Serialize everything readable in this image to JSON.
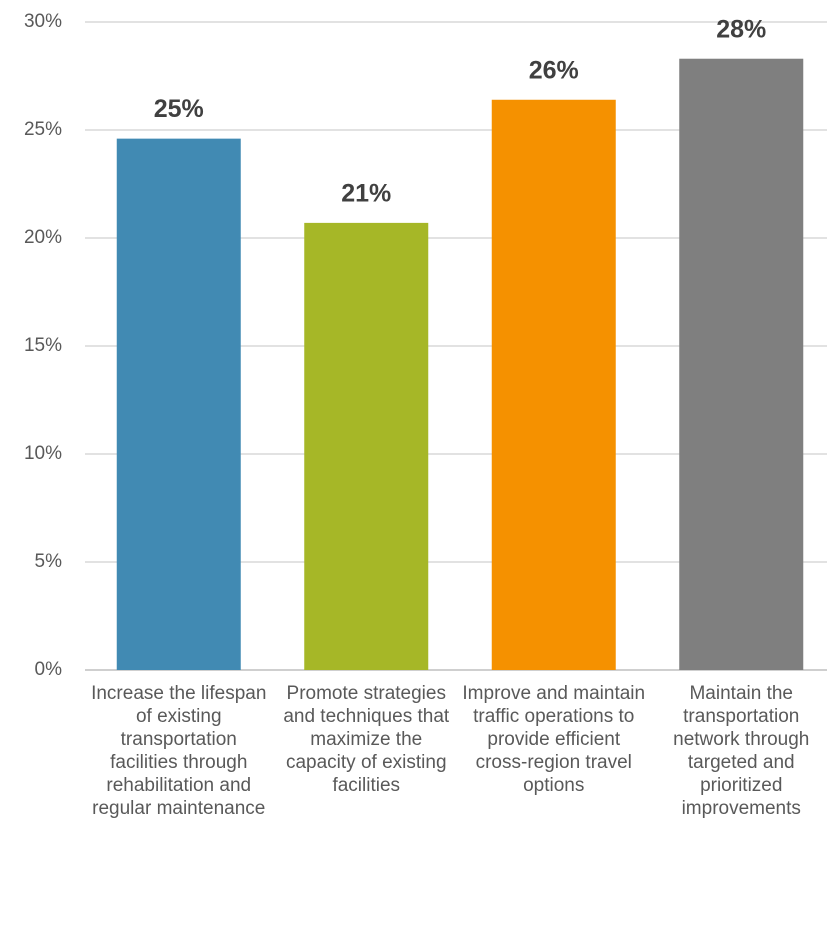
{
  "chart_data": {
    "type": "bar",
    "categories": [
      "Increase the lifespan of existing transportation facilities through rehabilitation and regular maintenance",
      "Promote strategies and techniques that maximize the capacity of existing facilities",
      "Improve and maintain traffic operations to provide efficient cross-region travel options",
      "Maintain the transportation network through targeted and prioritized improvements"
    ],
    "values": [
      24.6,
      20.7,
      26.4,
      28.3
    ],
    "value_labels": [
      "25%",
      "21%",
      "26%",
      "28%"
    ],
    "colors": [
      "#418ab3",
      "#a6b727",
      "#f59100",
      "#7f7f7f"
    ],
    "ylim": [
      0,
      30
    ],
    "yticks": [
      {
        "value": 0,
        "label": "0%"
      },
      {
        "value": 5,
        "label": "5%"
      },
      {
        "value": 10,
        "label": "10%"
      },
      {
        "value": 15,
        "label": "15%"
      },
      {
        "value": 20,
        "label": "20%"
      },
      {
        "value": 25,
        "label": "25%"
      },
      {
        "value": 30,
        "label": "30%"
      }
    ],
    "grid": true
  }
}
